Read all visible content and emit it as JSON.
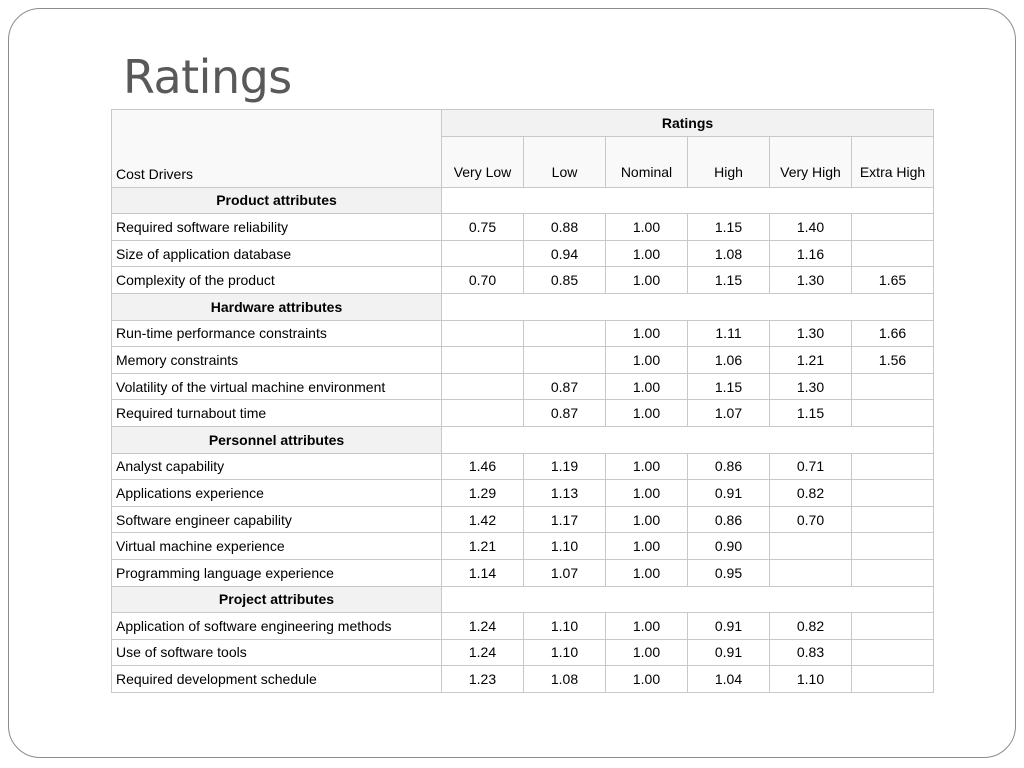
{
  "slide": {
    "title": "Ratings"
  },
  "table": {
    "ratings_header": "Ratings",
    "corner_label": "Cost Drivers",
    "columns": [
      "Very Low",
      "Low",
      "Nominal",
      "High",
      "Very High",
      "Extra High"
    ],
    "groups": [
      {
        "name": "Product attributes",
        "rows": [
          {
            "driver": "Required software reliability",
            "values": [
              "0.75",
              "0.88",
              "1.00",
              "1.15",
              "1.40",
              ""
            ]
          },
          {
            "driver": "Size of application database",
            "values": [
              "",
              "0.94",
              "1.00",
              "1.08",
              "1.16",
              ""
            ]
          },
          {
            "driver": "Complexity of the product",
            "values": [
              "0.70",
              "0.85",
              "1.00",
              "1.15",
              "1.30",
              "1.65"
            ]
          }
        ]
      },
      {
        "name": "Hardware attributes",
        "rows": [
          {
            "driver": "Run-time performance constraints",
            "values": [
              "",
              "",
              "1.00",
              "1.11",
              "1.30",
              "1.66"
            ]
          },
          {
            "driver": "Memory constraints",
            "values": [
              "",
              "",
              "1.00",
              "1.06",
              "1.21",
              "1.56"
            ]
          },
          {
            "driver": "Volatility of the virtual machine environment",
            "values": [
              "",
              "0.87",
              "1.00",
              "1.15",
              "1.30",
              ""
            ]
          },
          {
            "driver": "Required turnabout time",
            "values": [
              "",
              "0.87",
              "1.00",
              "1.07",
              "1.15",
              ""
            ]
          }
        ]
      },
      {
        "name": "Personnel attributes",
        "rows": [
          {
            "driver": "Analyst capability",
            "values": [
              "1.46",
              "1.19",
              "1.00",
              "0.86",
              "0.71",
              ""
            ]
          },
          {
            "driver": "Applications experience",
            "values": [
              "1.29",
              "1.13",
              "1.00",
              "0.91",
              "0.82",
              ""
            ]
          },
          {
            "driver": "Software engineer capability",
            "values": [
              "1.42",
              "1.17",
              "1.00",
              "0.86",
              "0.70",
              ""
            ]
          },
          {
            "driver": "Virtual machine experience",
            "values": [
              "1.21",
              "1.10",
              "1.00",
              "0.90",
              "",
              ""
            ]
          },
          {
            "driver": "Programming language experience",
            "values": [
              "1.14",
              "1.07",
              "1.00",
              "0.95",
              "",
              ""
            ]
          }
        ]
      },
      {
        "name": "Project attributes",
        "rows": [
          {
            "driver": "Application of software engineering methods",
            "values": [
              "1.24",
              "1.10",
              "1.00",
              "0.91",
              "0.82",
              ""
            ]
          },
          {
            "driver": "Use of software tools",
            "values": [
              "1.24",
              "1.10",
              "1.00",
              "0.91",
              "0.83",
              ""
            ]
          },
          {
            "driver": "Required development schedule",
            "values": [
              "1.23",
              "1.08",
              "1.00",
              "1.04",
              "1.10",
              ""
            ]
          }
        ]
      }
    ]
  }
}
